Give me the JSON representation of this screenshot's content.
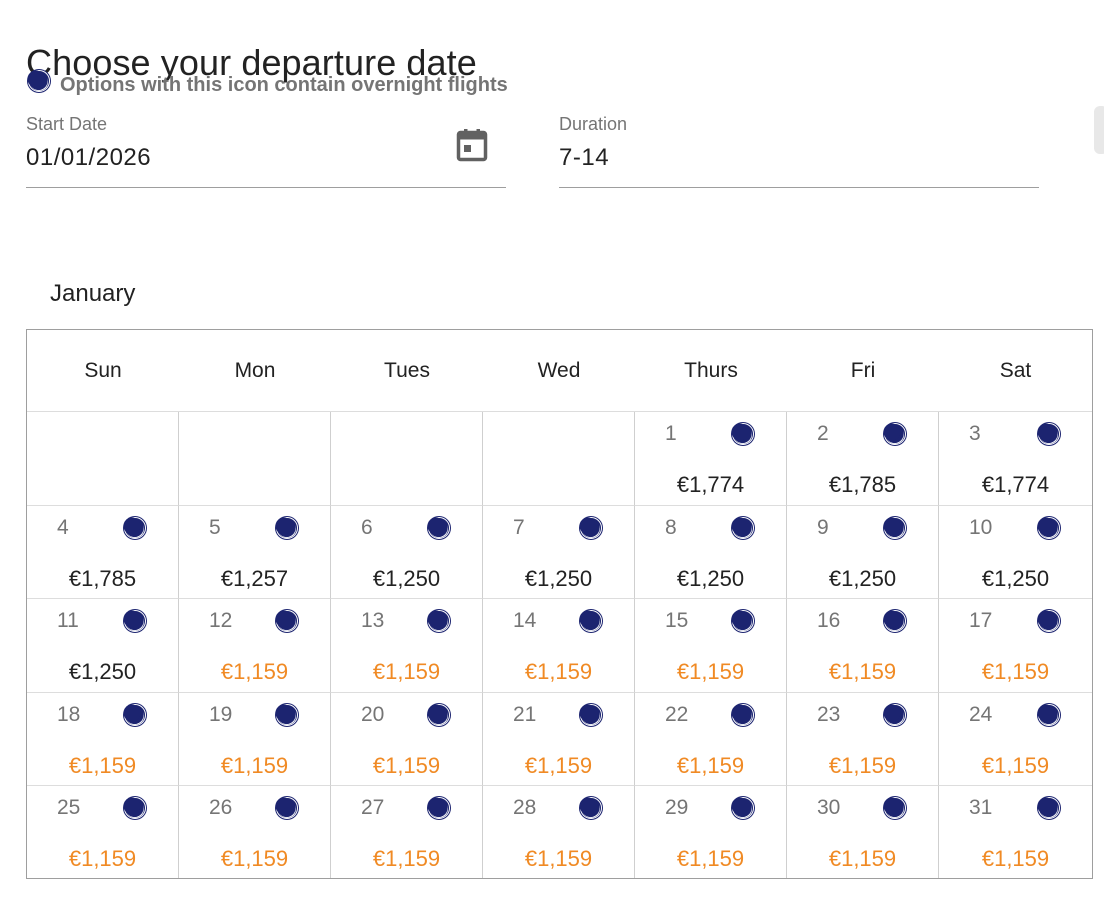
{
  "page_title": "Choose your departure date",
  "overnight_notice": "Options with this icon contain overnight flights",
  "start_date": {
    "label": "Start Date",
    "value": "01/01/2026"
  },
  "duration": {
    "label": "Duration",
    "value": "7-14"
  },
  "month": "January",
  "weekdays": [
    "Sun",
    "Mon",
    "Tues",
    "Wed",
    "Thurs",
    "Fri",
    "Sat"
  ],
  "colors": {
    "moon": "#1c2470",
    "cheapest_price": "#f08a24",
    "regular_price": "#222222"
  },
  "first_weekday_index": 4,
  "days": [
    {
      "day": "1",
      "price": "€1,774",
      "overnight": true,
      "cheapest": false
    },
    {
      "day": "2",
      "price": "€1,785",
      "overnight": true,
      "cheapest": false
    },
    {
      "day": "3",
      "price": "€1,774",
      "overnight": true,
      "cheapest": false
    },
    {
      "day": "4",
      "price": "€1,785",
      "overnight": true,
      "cheapest": false
    },
    {
      "day": "5",
      "price": "€1,257",
      "overnight": true,
      "cheapest": false
    },
    {
      "day": "6",
      "price": "€1,250",
      "overnight": true,
      "cheapest": false
    },
    {
      "day": "7",
      "price": "€1,250",
      "overnight": true,
      "cheapest": false
    },
    {
      "day": "8",
      "price": "€1,250",
      "overnight": true,
      "cheapest": false
    },
    {
      "day": "9",
      "price": "€1,250",
      "overnight": true,
      "cheapest": false
    },
    {
      "day": "10",
      "price": "€1,250",
      "overnight": true,
      "cheapest": false
    },
    {
      "day": "11",
      "price": "€1,250",
      "overnight": true,
      "cheapest": false
    },
    {
      "day": "12",
      "price": "€1,159",
      "overnight": true,
      "cheapest": true
    },
    {
      "day": "13",
      "price": "€1,159",
      "overnight": true,
      "cheapest": true
    },
    {
      "day": "14",
      "price": "€1,159",
      "overnight": true,
      "cheapest": true
    },
    {
      "day": "15",
      "price": "€1,159",
      "overnight": true,
      "cheapest": true
    },
    {
      "day": "16",
      "price": "€1,159",
      "overnight": true,
      "cheapest": true
    },
    {
      "day": "17",
      "price": "€1,159",
      "overnight": true,
      "cheapest": true
    },
    {
      "day": "18",
      "price": "€1,159",
      "overnight": true,
      "cheapest": true
    },
    {
      "day": "19",
      "price": "€1,159",
      "overnight": true,
      "cheapest": true
    },
    {
      "day": "20",
      "price": "€1,159",
      "overnight": true,
      "cheapest": true
    },
    {
      "day": "21",
      "price": "€1,159",
      "overnight": true,
      "cheapest": true
    },
    {
      "day": "22",
      "price": "€1,159",
      "overnight": true,
      "cheapest": true
    },
    {
      "day": "23",
      "price": "€1,159",
      "overnight": true,
      "cheapest": true
    },
    {
      "day": "24",
      "price": "€1,159",
      "overnight": true,
      "cheapest": true
    },
    {
      "day": "25",
      "price": "€1,159",
      "overnight": true,
      "cheapest": true
    },
    {
      "day": "26",
      "price": "€1,159",
      "overnight": true,
      "cheapest": true
    },
    {
      "day": "27",
      "price": "€1,159",
      "overnight": true,
      "cheapest": true
    },
    {
      "day": "28",
      "price": "€1,159",
      "overnight": true,
      "cheapest": true
    },
    {
      "day": "29",
      "price": "€1,159",
      "overnight": true,
      "cheapest": true
    },
    {
      "day": "30",
      "price": "€1,159",
      "overnight": true,
      "cheapest": true
    },
    {
      "day": "31",
      "price": "€1,159",
      "overnight": true,
      "cheapest": true
    }
  ]
}
